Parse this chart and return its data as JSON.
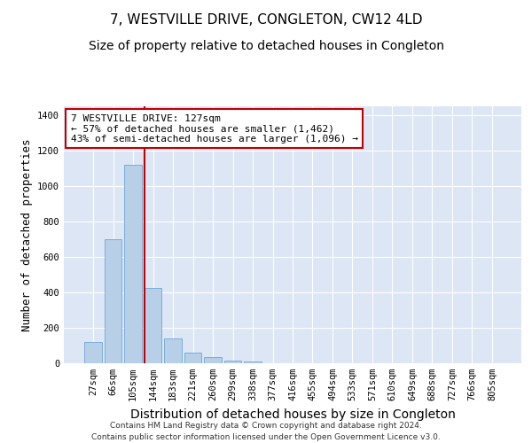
{
  "title": "7, WESTVILLE DRIVE, CONGLETON, CW12 4LD",
  "subtitle": "Size of property relative to detached houses in Congleton",
  "xlabel": "Distribution of detached houses by size in Congleton",
  "ylabel": "Number of detached properties",
  "footer_line1": "Contains HM Land Registry data © Crown copyright and database right 2024.",
  "footer_line2": "Contains public sector information licensed under the Open Government Licence v3.0.",
  "categories": [
    "27sqm",
    "66sqm",
    "105sqm",
    "144sqm",
    "183sqm",
    "221sqm",
    "260sqm",
    "299sqm",
    "338sqm",
    "377sqm",
    "416sqm",
    "455sqm",
    "494sqm",
    "533sqm",
    "571sqm",
    "610sqm",
    "649sqm",
    "688sqm",
    "727sqm",
    "766sqm",
    "805sqm"
  ],
  "values": [
    120,
    700,
    1120,
    425,
    140,
    60,
    35,
    15,
    10,
    0,
    0,
    0,
    0,
    0,
    0,
    0,
    0,
    0,
    0,
    0,
    0
  ],
  "bar_color": "#b8cfe8",
  "bar_edge_color": "#5b9bd5",
  "bar_width": 0.85,
  "vline_color": "#c00000",
  "vline_position": 2.57,
  "annotation_text": "7 WESTVILLE DRIVE: 127sqm\n← 57% of detached houses are smaller (1,462)\n43% of semi-detached houses are larger (1,096) →",
  "annotation_box_color": "#c00000",
  "annotation_bg": "#ffffff",
  "ylim": [
    0,
    1450
  ],
  "yticks": [
    0,
    200,
    400,
    600,
    800,
    1000,
    1200,
    1400
  ],
  "title_fontsize": 11,
  "subtitle_fontsize": 10,
  "axis_bg_color": "#dce6f5",
  "fig_bg_color": "#ffffff",
  "grid_color": "#ffffff",
  "tick_fontsize": 7.5,
  "ylabel_fontsize": 9,
  "xlabel_fontsize": 10
}
